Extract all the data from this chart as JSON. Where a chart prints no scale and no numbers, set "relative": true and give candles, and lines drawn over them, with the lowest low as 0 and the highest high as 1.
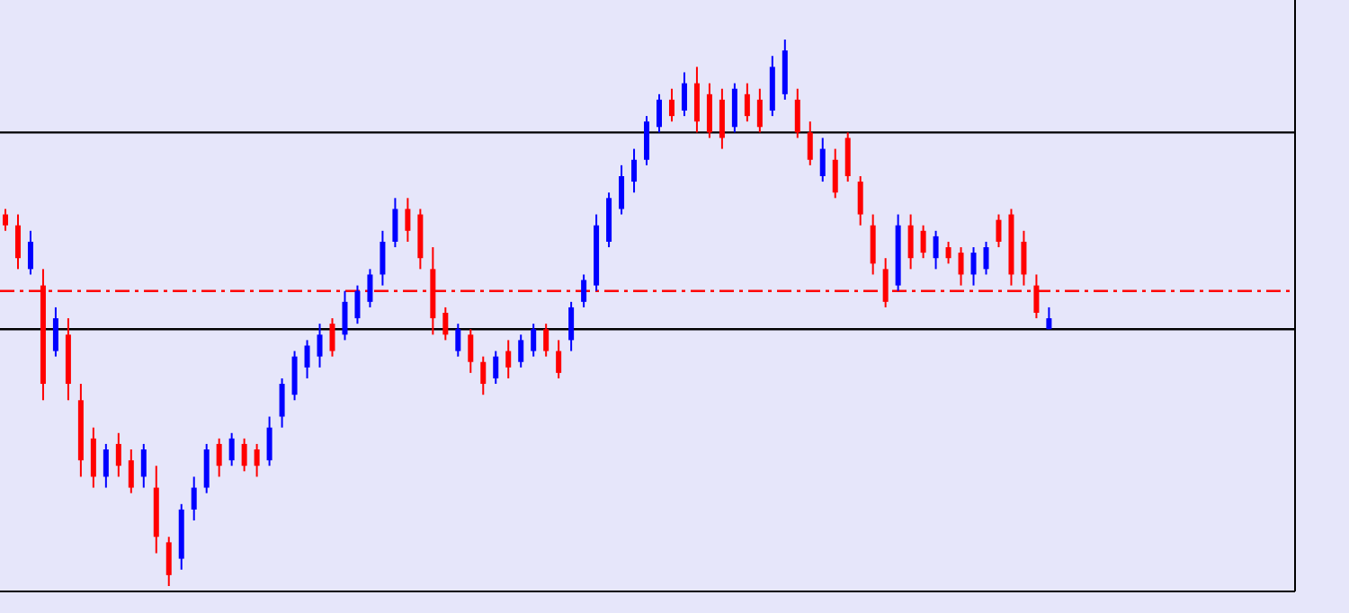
{
  "chart_data": {
    "type": "candlestick",
    "relative": true,
    "colors": [
      "#ff0000",
      "#ff0000",
      "#0000ff",
      "#ff0000",
      "#0000ff",
      "#ff0000",
      "#ff0000",
      "#ff0000",
      "#0000ff",
      "#ff0000",
      "#ff0000",
      "#0000ff",
      "#ff0000",
      "#ff0000",
      "#0000ff",
      "#0000ff",
      "#0000ff",
      "#ff0000",
      "#0000ff",
      "#ff0000",
      "#ff0000",
      "#0000ff",
      "#0000ff",
      "#0000ff",
      "#0000ff",
      "#0000ff",
      "#ff0000",
      "#0000ff",
      "#0000ff",
      "#0000ff",
      "#0000ff",
      "#0000ff",
      "#ff0000",
      "#ff0000",
      "#ff0000",
      "#ff0000",
      "#0000ff",
      "#ff0000",
      "#ff0000",
      "#0000ff",
      "#ff0000",
      "#0000ff",
      "#0000ff",
      "#ff0000",
      "#ff0000",
      "#0000ff",
      "#0000ff",
      "#0000ff",
      "#0000ff",
      "#0000ff",
      "#0000ff",
      "#0000ff",
      "#0000ff",
      "#ff0000",
      "#0000ff",
      "#ff0000",
      "#ff0000",
      "#ff0000",
      "#0000ff",
      "#ff0000",
      "#ff0000",
      "#0000ff",
      "#0000ff",
      "#ff0000",
      "#ff0000",
      "#0000ff",
      "#ff0000",
      "#ff0000",
      "#ff0000",
      "#ff0000",
      "#ff0000",
      "#0000ff",
      "#ff0000",
      "#ff0000",
      "#0000ff",
      "#ff0000",
      "#ff0000",
      "#0000ff",
      "#0000ff",
      "#ff0000",
      "#ff0000",
      "#ff0000",
      "#ff0000",
      "#0000ff"
    ],
    "categories": [
      null,
      null,
      null,
      null,
      null,
      null,
      null,
      null,
      null,
      null,
      null,
      null,
      null,
      null,
      null,
      null,
      null,
      null,
      null,
      null,
      null,
      null,
      null,
      null,
      null,
      null,
      null,
      null,
      null,
      null,
      null,
      null,
      null,
      null,
      null,
      null,
      null,
      null,
      null,
      null,
      null,
      null,
      null,
      null,
      null,
      null,
      null,
      null,
      null,
      null,
      null,
      null,
      null,
      null,
      null,
      null,
      null,
      null,
      null,
      null,
      null,
      null,
      null,
      null,
      null,
      null,
      null,
      null,
      null,
      null,
      null,
      null,
      null,
      null,
      null,
      null,
      null,
      null,
      null,
      null,
      null,
      null,
      null,
      null
    ],
    "ohlc": [
      [
        0.68,
        0.69,
        0.65,
        0.66
      ],
      [
        0.66,
        0.68,
        0.58,
        0.6
      ],
      [
        0.58,
        0.65,
        0.57,
        0.63
      ],
      [
        0.55,
        0.58,
        0.34,
        0.37
      ],
      [
        0.43,
        0.51,
        0.42,
        0.49
      ],
      [
        0.46,
        0.49,
        0.34,
        0.37
      ],
      [
        0.34,
        0.37,
        0.2,
        0.23
      ],
      [
        0.27,
        0.29,
        0.18,
        0.2
      ],
      [
        0.2,
        0.26,
        0.18,
        0.25
      ],
      [
        0.26,
        0.28,
        0.2,
        0.22
      ],
      [
        0.23,
        0.25,
        0.17,
        0.18
      ],
      [
        0.2,
        0.26,
        0.18,
        0.25
      ],
      [
        0.18,
        0.22,
        0.06,
        0.09
      ],
      [
        0.08,
        0.09,
        0,
        0.02
      ],
      [
        0.05,
        0.15,
        0.03,
        0.14
      ],
      [
        0.14,
        0.2,
        0.12,
        0.18
      ],
      [
        0.18,
        0.26,
        0.17,
        0.25
      ],
      [
        0.26,
        0.27,
        0.2,
        0.22
      ],
      [
        0.23,
        0.28,
        0.22,
        0.27
      ],
      [
        0.26,
        0.27,
        0.21,
        0.22
      ],
      [
        0.25,
        0.26,
        0.2,
        0.22
      ],
      [
        0.23,
        0.31,
        0.22,
        0.29
      ],
      [
        0.31,
        0.38,
        0.29,
        0.37
      ],
      [
        0.35,
        0.43,
        0.34,
        0.42
      ],
      [
        0.4,
        0.45,
        0.38,
        0.44
      ],
      [
        0.42,
        0.48,
        0.4,
        0.46
      ],
      [
        0.48,
        0.49,
        0.42,
        0.43
      ],
      [
        0.46,
        0.54,
        0.45,
        0.52
      ],
      [
        0.49,
        0.55,
        0.48,
        0.54
      ],
      [
        0.52,
        0.58,
        0.51,
        0.57
      ],
      [
        0.57,
        0.65,
        0.55,
        0.63
      ],
      [
        0.63,
        0.71,
        0.62,
        0.69
      ],
      [
        0.69,
        0.71,
        0.63,
        0.65
      ],
      [
        0.68,
        0.69,
        0.58,
        0.6
      ],
      [
        0.58,
        0.62,
        0.46,
        0.49
      ],
      [
        0.5,
        0.51,
        0.45,
        0.46
      ],
      [
        0.43,
        0.48,
        0.42,
        0.47
      ],
      [
        0.46,
        0.47,
        0.39,
        0.41
      ],
      [
        0.41,
        0.42,
        0.35,
        0.37
      ],
      [
        0.38,
        0.43,
        0.37,
        0.42
      ],
      [
        0.43,
        0.45,
        0.38,
        0.4
      ],
      [
        0.41,
        0.46,
        0.4,
        0.45
      ],
      [
        0.43,
        0.48,
        0.42,
        0.47
      ],
      [
        0.47,
        0.48,
        0.42,
        0.43
      ],
      [
        0.43,
        0.45,
        0.38,
        0.39
      ],
      [
        0.45,
        0.52,
        0.43,
        0.51
      ],
      [
        0.52,
        0.57,
        0.51,
        0.56
      ],
      [
        0.55,
        0.68,
        0.54,
        0.66
      ],
      [
        0.63,
        0.72,
        0.62,
        0.71
      ],
      [
        0.69,
        0.77,
        0.68,
        0.75
      ],
      [
        0.74,
        0.8,
        0.72,
        0.78
      ],
      [
        0.78,
        0.86,
        0.77,
        0.85
      ],
      [
        0.84,
        0.9,
        0.83,
        0.89
      ],
      [
        0.89,
        0.91,
        0.85,
        0.86
      ],
      [
        0.87,
        0.94,
        0.86,
        0.92
      ],
      [
        0.92,
        0.95,
        0.83,
        0.85
      ],
      [
        0.9,
        0.92,
        0.82,
        0.83
      ],
      [
        0.89,
        0.91,
        0.8,
        0.82
      ],
      [
        0.84,
        0.92,
        0.83,
        0.91
      ],
      [
        0.9,
        0.92,
        0.85,
        0.86
      ],
      [
        0.89,
        0.91,
        0.83,
        0.84
      ],
      [
        0.87,
        0.97,
        0.86,
        0.95
      ],
      [
        0.9,
        1,
        0.89,
        0.98
      ],
      [
        0.89,
        0.91,
        0.82,
        0.83
      ],
      [
        0.83,
        0.85,
        0.77,
        0.78
      ],
      [
        0.75,
        0.82,
        0.74,
        0.8
      ],
      [
        0.78,
        0.8,
        0.71,
        0.72
      ],
      [
        0.82,
        0.83,
        0.74,
        0.75
      ],
      [
        0.74,
        0.75,
        0.66,
        0.68
      ],
      [
        0.66,
        0.68,
        0.57,
        0.59
      ],
      [
        0.58,
        0.6,
        0.51,
        0.52
      ],
      [
        0.55,
        0.68,
        0.54,
        0.66
      ],
      [
        0.66,
        0.68,
        0.58,
        0.6
      ],
      [
        0.65,
        0.66,
        0.6,
        0.61
      ],
      [
        0.6,
        0.65,
        0.58,
        0.64
      ],
      [
        0.62,
        0.63,
        0.59,
        0.6
      ],
      [
        0.61,
        0.62,
        0.55,
        0.57
      ],
      [
        0.57,
        0.62,
        0.55,
        0.61
      ],
      [
        0.58,
        0.63,
        0.57,
        0.62
      ],
      [
        0.67,
        0.68,
        0.62,
        0.63
      ],
      [
        0.68,
        0.69,
        0.55,
        0.57
      ],
      [
        0.63,
        0.65,
        0.55,
        0.57
      ],
      [
        0.55,
        0.57,
        0.49,
        0.5
      ],
      [
        0.47,
        0.51,
        0.47,
        0.49
      ]
    ],
    "ref_lines": [
      {
        "axis": "y",
        "value": 0.83,
        "color": "#000000",
        "line_style": "solid"
      },
      {
        "axis": "y",
        "value": 0.47,
        "color": "#000000",
        "line_style": "solid"
      },
      {
        "axis": "y",
        "value": 0.54,
        "color": "#ff0000",
        "line_style": "dashdot"
      }
    ]
  }
}
